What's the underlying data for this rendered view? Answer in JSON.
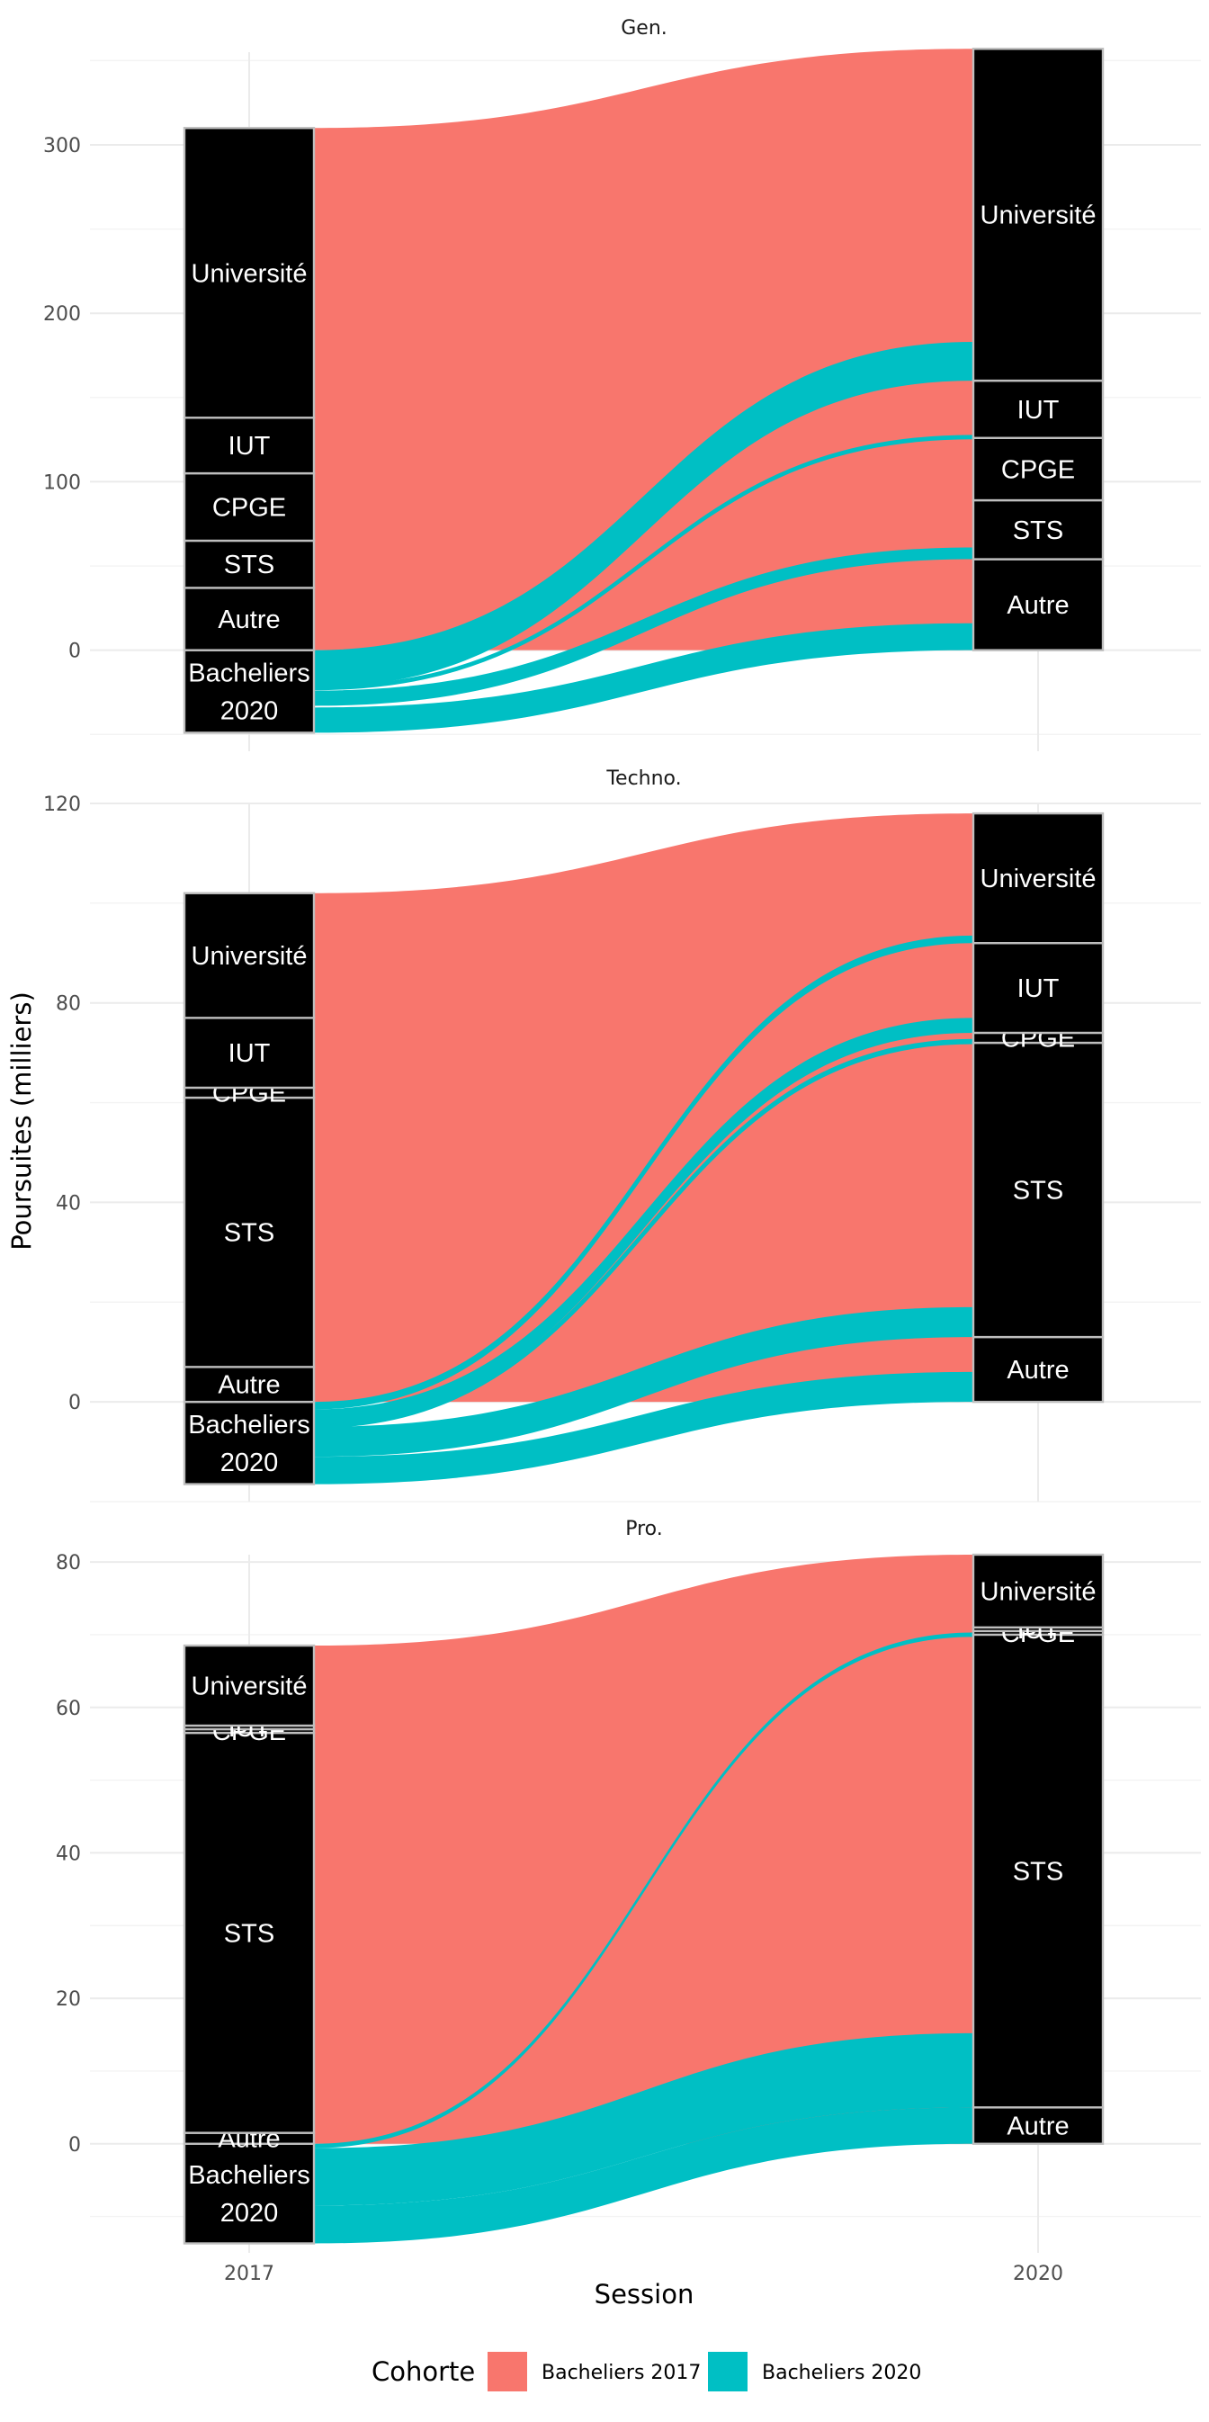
{
  "chart_data": {
    "type": "alluvial",
    "xlabel": "Session",
    "ylabel": "Poursuites (milliers)",
    "x_categories": [
      "2017",
      "2020"
    ],
    "legend": {
      "title": "Cohorte",
      "position": "bottom",
      "entries": [
        {
          "name": "Bacheliers 2017",
          "color": "#F8766D"
        },
        {
          "name": "Bacheliers 2020",
          "color": "#00BFC4"
        }
      ]
    },
    "grid": true,
    "panels": [
      {
        "title": "Gen.",
        "ylim": [
          -60,
          355
        ],
        "yticks": [
          0,
          100,
          200,
          300
        ],
        "strata_2017": [
          {
            "label": "Bacheliers\n2020",
            "from": -49,
            "to": 0
          },
          {
            "label": "Autre",
            "from": 0,
            "to": 37
          },
          {
            "label": "STS",
            "from": 37,
            "to": 65
          },
          {
            "label": "CPGE",
            "from": 65,
            "to": 105
          },
          {
            "label": "IUT",
            "from": 105,
            "to": 138
          },
          {
            "label": "Université",
            "from": 138,
            "to": 310
          }
        ],
        "strata_2020": [
          {
            "label": "Autre",
            "from": 0,
            "to": 54
          },
          {
            "label": "STS",
            "from": 54,
            "to": 89
          },
          {
            "label": "CPGE",
            "from": 89,
            "to": 126
          },
          {
            "label": "IUT",
            "from": 126,
            "to": 160
          },
          {
            "label": "Université",
            "from": 160,
            "to": 357
          }
        ],
        "flows": [
          {
            "cohort": "Bacheliers 2017",
            "from": [
              0,
              310
            ],
            "to": [
              0,
              357
            ]
          },
          {
            "cohort": "Bacheliers 2020",
            "from": [
              -49,
              -34
            ],
            "to": [
              0,
              16
            ]
          },
          {
            "cohort": "Bacheliers 2020",
            "from": [
              -33,
              -24
            ],
            "to": [
              54,
              61
            ]
          },
          {
            "cohort": "Bacheliers 2020",
            "from": [
              -23,
              -22
            ],
            "to": [
              126,
              127
            ]
          },
          {
            "cohort": "Bacheliers 2020",
            "from": [
              -22,
              0
            ],
            "to": [
              160,
              183
            ]
          }
        ]
      },
      {
        "title": "Techno.",
        "ylim": [
          -20,
          120
        ],
        "yticks": [
          0,
          40,
          80,
          120
        ],
        "strata_2017": [
          {
            "label": "Bacheliers\n2020",
            "from": -16.5,
            "to": 0
          },
          {
            "label": "Autre",
            "from": 0,
            "to": 7
          },
          {
            "label": "STS",
            "from": 7,
            "to": 61
          },
          {
            "label": "CPGE",
            "from": 61,
            "to": 63
          },
          {
            "label": "IUT",
            "from": 63,
            "to": 77
          },
          {
            "label": "Université",
            "from": 77,
            "to": 102
          }
        ],
        "strata_2020": [
          {
            "label": "Autre",
            "from": 0,
            "to": 13
          },
          {
            "label": "STS",
            "from": 13,
            "to": 72
          },
          {
            "label": "CPGE",
            "from": 72,
            "to": 74
          },
          {
            "label": "IUT",
            "from": 74,
            "to": 92
          },
          {
            "label": "Université",
            "from": 92,
            "to": 118
          }
        ],
        "flows": [
          {
            "cohort": "Bacheliers 2017",
            "from": [
              0,
              102
            ],
            "to": [
              0,
              118
            ]
          },
          {
            "cohort": "Bacheliers 2020",
            "from": [
              -16.5,
              -11
            ],
            "to": [
              0,
              6
            ]
          },
          {
            "cohort": "Bacheliers 2020",
            "from": [
              -11,
              -5
            ],
            "to": [
              13,
              19
            ]
          },
          {
            "cohort": "Bacheliers 2020",
            "from": [
              -5,
              -4.5
            ],
            "to": [
              72,
              72.5
            ]
          },
          {
            "cohort": "Bacheliers 2020",
            "from": [
              -4.5,
              -1.5
            ],
            "to": [
              74,
              77
            ]
          },
          {
            "cohort": "Bacheliers 2020",
            "from": [
              -1.5,
              0
            ],
            "to": [
              92,
              93.5
            ]
          }
        ]
      },
      {
        "title": "Pro.",
        "ylim": [
          -15,
          81
        ],
        "yticks": [
          0,
          20,
          40,
          60,
          80
        ],
        "strata_2017": [
          {
            "label": "Bacheliers\n2020",
            "from": -13.7,
            "to": 0
          },
          {
            "label": "Autre",
            "from": 0,
            "to": 1.5
          },
          {
            "label": "STS",
            "from": 1.5,
            "to": 56.5
          },
          {
            "label": "CPGE",
            "from": 56.5,
            "to": 57
          },
          {
            "label": "IUT",
            "from": 57,
            "to": 57.5
          },
          {
            "label": "Université",
            "from": 57.5,
            "to": 68.5
          }
        ],
        "strata_2020": [
          {
            "label": "Autre",
            "from": 0,
            "to": 5
          },
          {
            "label": "STS",
            "from": 5,
            "to": 70
          },
          {
            "label": "CPGE",
            "from": 70,
            "to": 70.5
          },
          {
            "label": "IUT",
            "from": 70.5,
            "to": 71
          },
          {
            "label": "Université",
            "from": 71,
            "to": 81
          }
        ],
        "flows": [
          {
            "cohort": "Bacheliers 2017",
            "from": [
              0,
              68.5
            ],
            "to": [
              0,
              81
            ]
          },
          {
            "cohort": "Bacheliers 2020",
            "from": [
              -13.7,
              -8.5
            ],
            "to": [
              0,
              5
            ]
          },
          {
            "cohort": "Bacheliers 2020",
            "from": [
              -8.5,
              -0.6
            ],
            "to": [
              5,
              15.2
            ]
          },
          {
            "cohort": "Bacheliers 2020",
            "from": [
              -0.6,
              0
            ],
            "to": [
              69.7,
              70.3
            ]
          }
        ]
      }
    ]
  }
}
